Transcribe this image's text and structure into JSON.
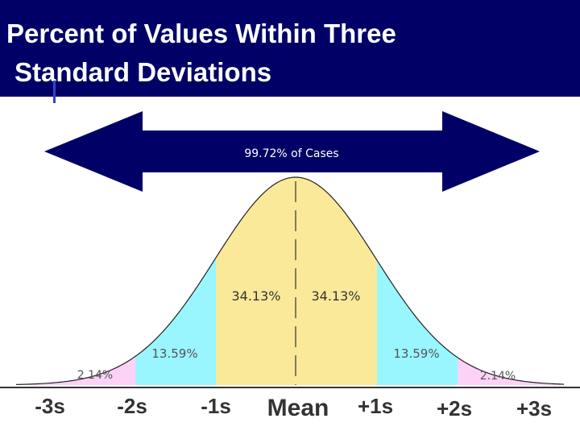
{
  "title": {
    "line1": "Percent of Values Within Three",
    "line2": "Standard Deviations"
  },
  "arrow_label": "99.72% of Cases",
  "regions": [
    {
      "label": "34.13%",
      "position": "mean to +1s"
    },
    {
      "label": "34.13%",
      "position": "-1s to mean"
    },
    {
      "label": "13.59%",
      "position": "-2s to -1s"
    },
    {
      "label": "13.59%",
      "position": "+1s to +2s"
    },
    {
      "label": "2.14%",
      "position": "-3s to -2s"
    },
    {
      "label": "2.14%",
      "position": "+2s to +3s"
    }
  ],
  "axis_labels": [
    "-3s",
    "-2s",
    "-1s",
    "Mean",
    "+1s",
    "+2s",
    "+3s"
  ],
  "colors": {
    "title_bg": "#000066",
    "arrow": "#000066",
    "one_sd": "#fbe99a",
    "two_sd": "#99f6ff",
    "three_sd": "#fcd3f6"
  }
}
